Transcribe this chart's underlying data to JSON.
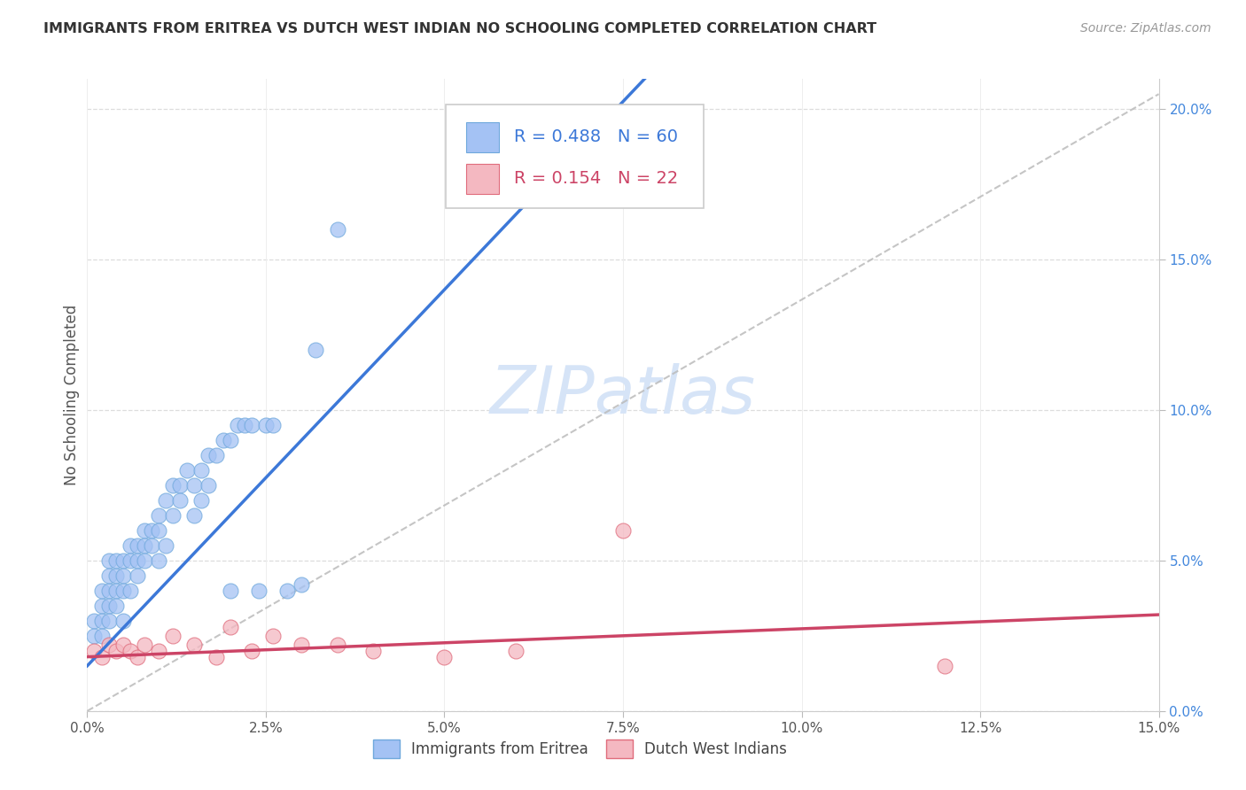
{
  "title": "IMMIGRANTS FROM ERITREA VS DUTCH WEST INDIAN NO SCHOOLING COMPLETED CORRELATION CHART",
  "source": "Source: ZipAtlas.com",
  "ylabel": "No Schooling Completed",
  "xlim": [
    0.0,
    0.15
  ],
  "ylim": [
    0.0,
    0.21
  ],
  "xticks": [
    0.0,
    0.025,
    0.05,
    0.075,
    0.1,
    0.125,
    0.15
  ],
  "xtick_labels": [
    "0.0%",
    "2.5%",
    "5.0%",
    "7.5%",
    "10.0%",
    "12.5%",
    "15.0%"
  ],
  "yticks_right": [
    0.0,
    0.05,
    0.1,
    0.15,
    0.2
  ],
  "ytick_labels_right": [
    "0.0%",
    "5.0%",
    "10.0%",
    "15.0%",
    "20.0%"
  ],
  "series1_color": "#a4c2f4",
  "series1_edge": "#6fa8dc",
  "series2_color": "#f4b8c1",
  "series2_edge": "#e06c7c",
  "series1_label": "Immigrants from Eritrea",
  "series2_label": "Dutch West Indians",
  "R1": 0.488,
  "N1": 60,
  "R2": 0.154,
  "N2": 22,
  "trend1_color": "#3c78d8",
  "trend2_color": "#cc4466",
  "ref_line_color": "#bbbbbb",
  "watermark_color": "#d6e4f7",
  "background_color": "#ffffff",
  "grid_color": "#dddddd",
  "title_color": "#333333",
  "right_yaxis_color": "#4488dd",
  "legend_r1_color": "#3c78d8",
  "legend_r2_color": "#cc4466",
  "series1_x": [
    0.001,
    0.001,
    0.002,
    0.002,
    0.002,
    0.002,
    0.003,
    0.003,
    0.003,
    0.003,
    0.003,
    0.004,
    0.004,
    0.004,
    0.004,
    0.005,
    0.005,
    0.005,
    0.005,
    0.006,
    0.006,
    0.006,
    0.007,
    0.007,
    0.007,
    0.008,
    0.008,
    0.008,
    0.009,
    0.009,
    0.01,
    0.01,
    0.01,
    0.011,
    0.011,
    0.012,
    0.012,
    0.013,
    0.013,
    0.014,
    0.015,
    0.015,
    0.016,
    0.016,
    0.017,
    0.017,
    0.018,
    0.019,
    0.02,
    0.02,
    0.021,
    0.022,
    0.023,
    0.024,
    0.025,
    0.026,
    0.028,
    0.03,
    0.032,
    0.035
  ],
  "series1_y": [
    0.03,
    0.025,
    0.035,
    0.03,
    0.04,
    0.025,
    0.04,
    0.035,
    0.03,
    0.05,
    0.045,
    0.045,
    0.04,
    0.05,
    0.035,
    0.05,
    0.045,
    0.04,
    0.03,
    0.055,
    0.05,
    0.04,
    0.055,
    0.05,
    0.045,
    0.06,
    0.055,
    0.05,
    0.06,
    0.055,
    0.065,
    0.06,
    0.05,
    0.07,
    0.055,
    0.075,
    0.065,
    0.075,
    0.07,
    0.08,
    0.075,
    0.065,
    0.08,
    0.07,
    0.085,
    0.075,
    0.085,
    0.09,
    0.09,
    0.04,
    0.095,
    0.095,
    0.095,
    0.04,
    0.095,
    0.095,
    0.04,
    0.042,
    0.12,
    0.16
  ],
  "series2_x": [
    0.001,
    0.002,
    0.003,
    0.004,
    0.005,
    0.006,
    0.007,
    0.008,
    0.01,
    0.012,
    0.015,
    0.018,
    0.02,
    0.023,
    0.026,
    0.03,
    0.035,
    0.04,
    0.05,
    0.06,
    0.075,
    0.12
  ],
  "series2_y": [
    0.02,
    0.018,
    0.022,
    0.02,
    0.022,
    0.02,
    0.018,
    0.022,
    0.02,
    0.025,
    0.022,
    0.018,
    0.028,
    0.02,
    0.025,
    0.022,
    0.022,
    0.02,
    0.018,
    0.02,
    0.06,
    0.015
  ]
}
